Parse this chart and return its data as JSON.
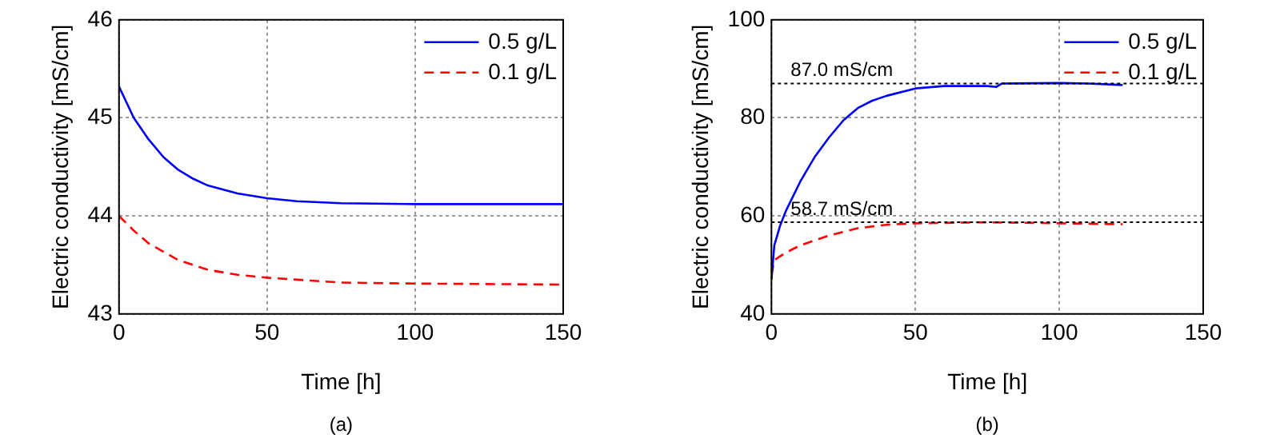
{
  "chart_data": [
    {
      "type": "line",
      "xlabel": "Time [h]",
      "ylabel": "Electric conductivity [mS/cm]",
      "annotations": [
        "(a)"
      ],
      "xlim": [
        0,
        150
      ],
      "xticks": [
        0,
        50,
        100,
        150
      ],
      "ylim": [
        43,
        46
      ],
      "yticks": [
        43,
        44,
        45,
        46
      ],
      "grid": true,
      "legend": "top right",
      "marker": "none",
      "series": [
        {
          "name": "0.5 g/L",
          "color": "#0000ff",
          "line_style": "solid",
          "x": [
            0,
            5,
            10,
            15,
            20,
            25,
            30,
            40,
            50,
            60,
            75,
            100,
            150
          ],
          "values": [
            45.32,
            45.0,
            44.78,
            44.6,
            44.47,
            44.38,
            44.31,
            44.23,
            44.18,
            44.15,
            44.13,
            44.12,
            44.12
          ]
        },
        {
          "name": "0.1 g/L",
          "color": "#ff0000",
          "line_style": "dashed",
          "x": [
            0,
            5,
            10,
            20,
            30,
            40,
            50,
            60,
            75,
            100,
            150
          ],
          "values": [
            44.0,
            43.85,
            43.72,
            43.55,
            43.45,
            43.4,
            43.37,
            43.35,
            43.32,
            43.31,
            43.3
          ]
        }
      ]
    },
    {
      "type": "line",
      "xlabel": "Time [h]",
      "ylabel": "Electric conductivity [mS/cm]",
      "annotations": [
        "(b)"
      ],
      "xlim": [
        0,
        150
      ],
      "xticks": [
        0,
        50,
        100,
        150
      ],
      "ylim": [
        40,
        100
      ],
      "yticks": [
        40,
        60,
        80,
        100
      ],
      "grid": true,
      "legend": "top right",
      "marker": "none",
      "ref_lines": [
        {
          "axis": "y",
          "value": 87.0,
          "label": "87.0 mS/cm",
          "color": "#000000",
          "line_style": "dotted"
        },
        {
          "axis": "y",
          "value": 58.7,
          "label": "58.7 mS/cm",
          "color": "#000000",
          "line_style": "dotted"
        }
      ],
      "series": [
        {
          "name": "0.5 g/L",
          "color": "#0000ff",
          "line_style": "solid",
          "x": [
            0,
            1,
            3,
            5,
            10,
            15,
            20,
            25,
            30,
            35,
            40,
            50,
            60,
            75,
            78,
            80,
            100,
            110,
            122
          ],
          "values": [
            47,
            54,
            58,
            61,
            67,
            72,
            76,
            79.5,
            82,
            83.5,
            84.5,
            86,
            86.5,
            86.5,
            86.3,
            87,
            87.1,
            87,
            86.7
          ]
        },
        {
          "name": "0.1 g/L",
          "color": "#ff0000",
          "line_style": "dashed",
          "x": [
            0,
            1,
            5,
            10,
            20,
            30,
            40,
            50,
            75,
            100,
            122
          ],
          "values": [
            48,
            51,
            52.5,
            54,
            56,
            57.5,
            58.2,
            58.5,
            58.7,
            58.5,
            58.3
          ]
        }
      ]
    }
  ]
}
